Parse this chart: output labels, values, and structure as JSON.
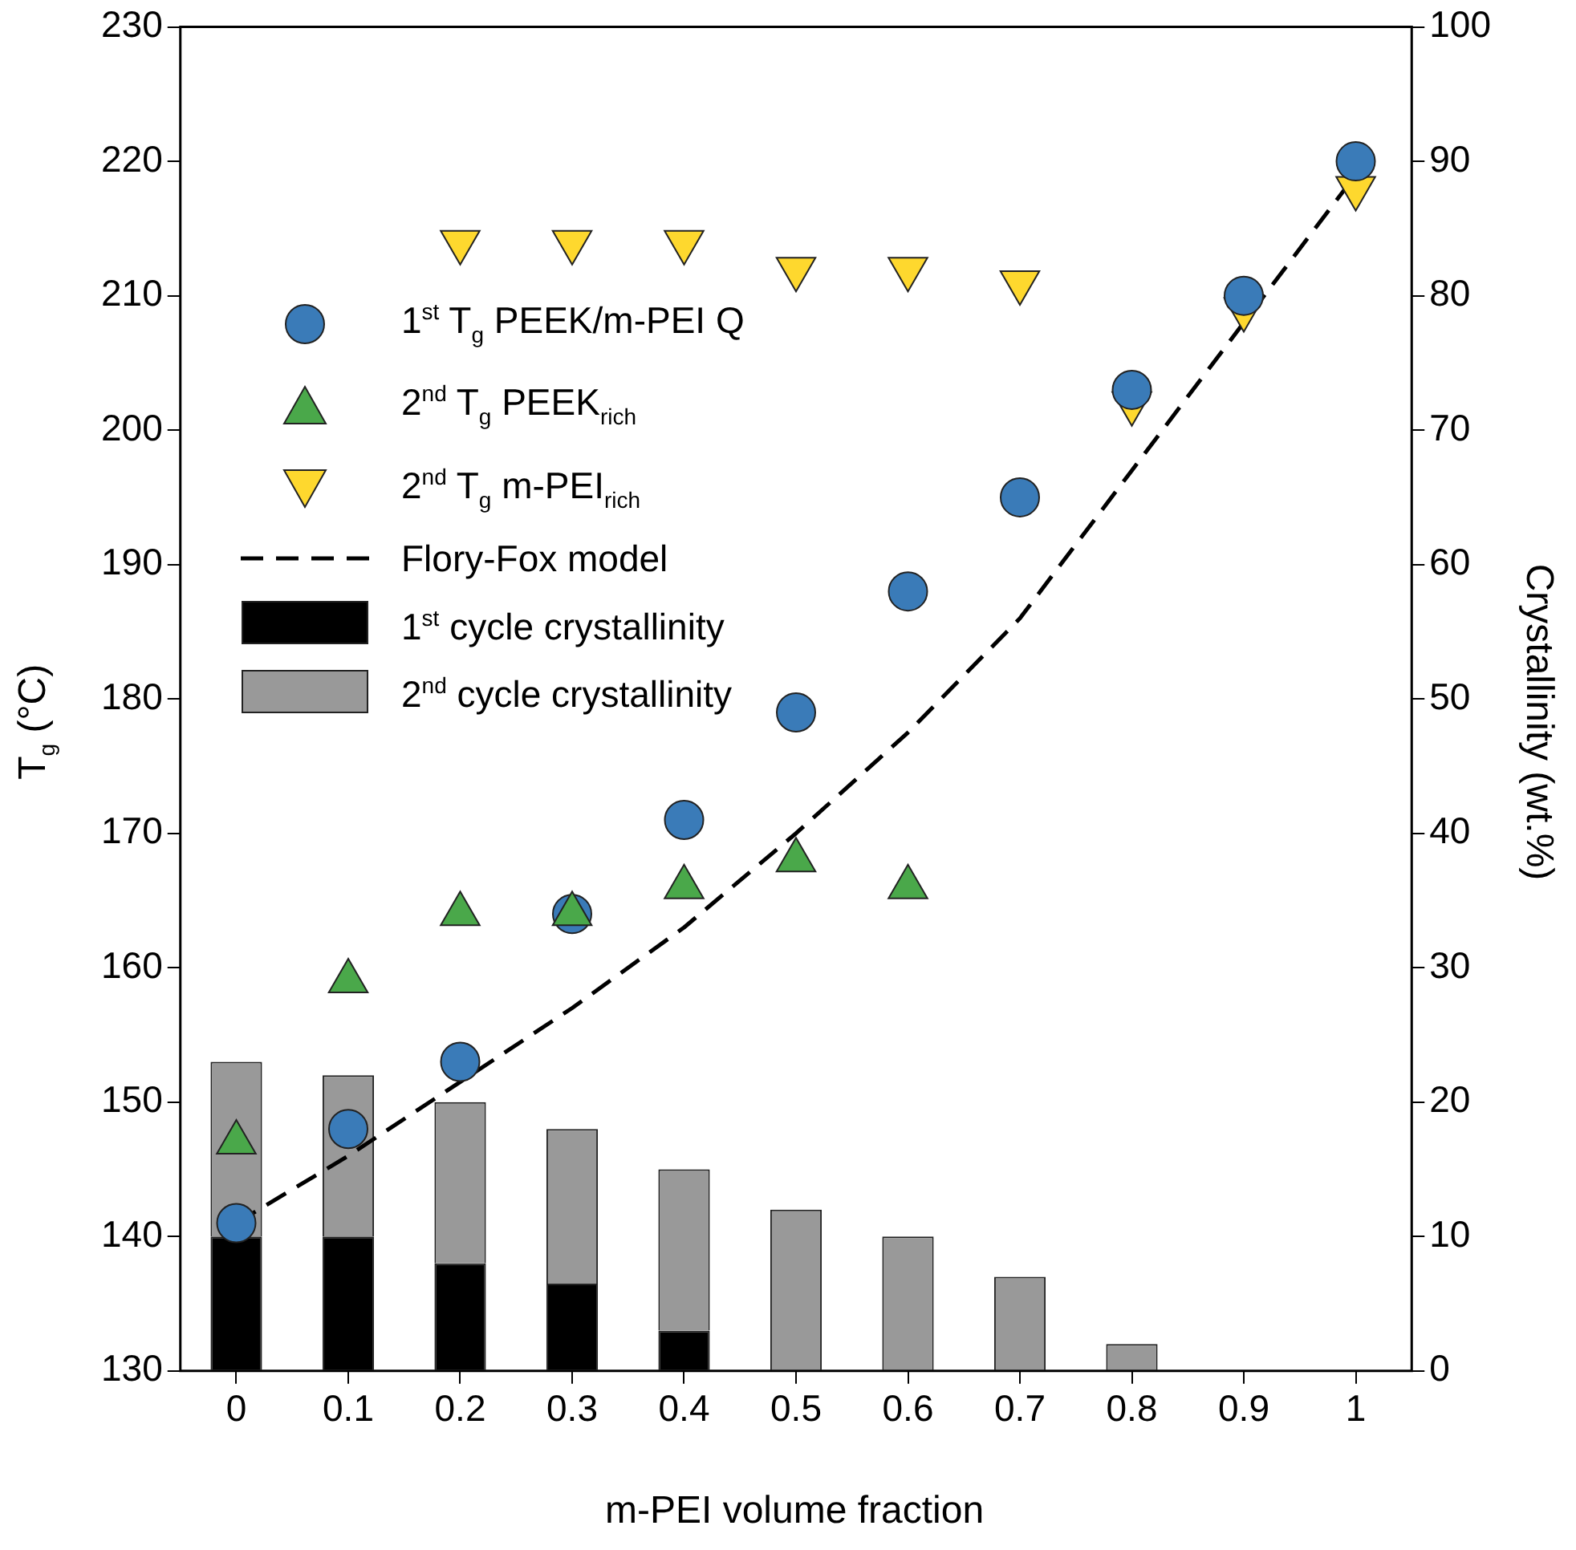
{
  "chart_data": {
    "type": "scatter",
    "xlabel": "m-PEI volume fraction",
    "ylabel": "T$_{g}$ (°C)",
    "y2label": "Crystallinity (wt.%)",
    "categories": [
      "0",
      "0.1",
      "0.2",
      "0.3",
      "0.4",
      "0.5",
      "0.6",
      "0.7",
      "0.8",
      "0.9",
      "1"
    ],
    "ylim": [
      130,
      230
    ],
    "yticks": [
      130,
      140,
      150,
      160,
      170,
      180,
      190,
      200,
      210,
      220,
      230
    ],
    "y2lim": [
      0,
      100
    ],
    "y2ticks": [
      0,
      10,
      20,
      30,
      40,
      50,
      60,
      70,
      80,
      90,
      100
    ],
    "stacked": true,
    "grid": false,
    "legend": "top left",
    "series": [
      {
        "name": "1$^{st}$ T$_{g}$ PEEK/m-PEI Q",
        "marker": "circle",
        "color": "#3a7bb8",
        "values": [
          141,
          148,
          153,
          164,
          171,
          179,
          188,
          195,
          203,
          210,
          220
        ]
      },
      {
        "name": "2$^{nd}$ T$_{g}$ PEEK$_{rich}$",
        "marker": "triangle",
        "color": "#4aa84a",
        "values": [
          147,
          159,
          164,
          164,
          166,
          168,
          166,
          null,
          null,
          null,
          null
        ]
      },
      {
        "name": "2$^{nd}$ T$_{g}$ m-PEI$_{rich}$",
        "marker": "triangle-down",
        "color": "#fed82e",
        "values": [
          null,
          null,
          214,
          214,
          214,
          212,
          212,
          211,
          202,
          209,
          218
        ]
      },
      {
        "name": "Flory-Fox model",
        "type": "line",
        "line_style": "dashed",
        "marker": "none",
        "color": "#000000",
        "values": [
          141,
          146,
          151.5,
          157,
          163,
          170,
          177.5,
          186,
          197,
          208,
          219
        ]
      },
      {
        "name": "1$^{st}$ cycle crystallinity",
        "type": "bar",
        "axis": "y2",
        "color": "#000000",
        "values": [
          10,
          10,
          8,
          6.5,
          3,
          null,
          null,
          null,
          null,
          null,
          null
        ]
      },
      {
        "name": "2$^{nd}$ cycle crystallinity",
        "type": "bar",
        "axis": "y2",
        "color": "#999999",
        "values": [
          13,
          12,
          12,
          11.5,
          12,
          12,
          10,
          7,
          2,
          null,
          null
        ]
      }
    ]
  }
}
